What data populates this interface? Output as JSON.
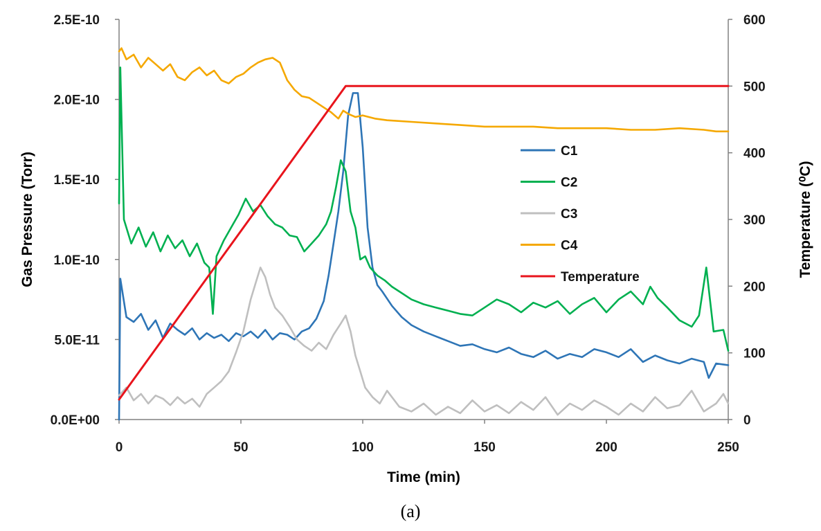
{
  "chart_data": {
    "type": "line",
    "caption": "(a)",
    "xlabel": "Time (min)",
    "ylabel_left": "Gas Pressure (Torr)",
    "ylabel_right": "Temperature (⁰C)",
    "xlim": [
      0,
      250
    ],
    "ylim_left": [
      0,
      2.5e-10
    ],
    "ylim_right": [
      0,
      600
    ],
    "x_ticks": [
      "0",
      "50",
      "100",
      "150",
      "200",
      "250"
    ],
    "y_left_ticks": [
      "0.0E+00",
      "5.0E-11",
      "1.0E-10",
      "1.5E-10",
      "2.0E-10",
      "2.5E-10"
    ],
    "y_right_ticks": [
      "0",
      "100",
      "200",
      "300",
      "400",
      "500",
      "600"
    ],
    "grid": false,
    "legend_position": "center-right",
    "series": [
      {
        "name": "C1",
        "axis": "left",
        "color": "#2e75b6",
        "x": [
          0,
          0.5,
          3,
          6,
          9,
          12,
          15,
          18,
          21,
          24,
          27,
          30,
          33,
          36,
          39,
          42,
          45,
          48,
          51,
          54,
          57,
          60,
          63,
          66,
          69,
          72,
          75,
          78,
          81,
          84,
          86,
          88,
          90,
          92,
          94,
          96,
          98,
          100,
          102,
          104,
          106,
          108,
          112,
          116,
          120,
          125,
          130,
          135,
          140,
          145,
          150,
          155,
          160,
          165,
          170,
          175,
          180,
          185,
          190,
          195,
          200,
          205,
          210,
          215,
          220,
          225,
          230,
          235,
          240,
          242,
          245,
          250
        ],
        "values": [
          0,
          8.8e-11,
          6.4e-11,
          6.1e-11,
          6.6e-11,
          5.6e-11,
          6.2e-11,
          5.1e-11,
          6e-11,
          5.6e-11,
          5.3e-11,
          5.7e-11,
          5e-11,
          5.4e-11,
          5.1e-11,
          5.3e-11,
          4.9e-11,
          5.4e-11,
          5.2e-11,
          5.5e-11,
          5.1e-11,
          5.6e-11,
          5e-11,
          5.4e-11,
          5.3e-11,
          5e-11,
          5.5e-11,
          5.7e-11,
          6.3e-11,
          7.4e-11,
          9e-11,
          1.1e-10,
          1.3e-10,
          1.55e-10,
          1.9e-10,
          2.04e-10,
          2.04e-10,
          1.7e-10,
          1.2e-10,
          9.5e-11,
          8.4e-11,
          8e-11,
          7.1e-11,
          6.4e-11,
          5.9e-11,
          5.5e-11,
          5.2e-11,
          4.9e-11,
          4.6e-11,
          4.7e-11,
          4.4e-11,
          4.2e-11,
          4.5e-11,
          4.1e-11,
          3.9e-11,
          4.3e-11,
          3.8e-11,
          4.1e-11,
          3.9e-11,
          4.4e-11,
          4.2e-11,
          3.9e-11,
          4.4e-11,
          3.6e-11,
          4e-11,
          3.7e-11,
          3.5e-11,
          3.8e-11,
          3.6e-11,
          2.6e-11,
          3.5e-11,
          3.4e-11
        ]
      },
      {
        "name": "C2",
        "axis": "left",
        "color": "#00b050",
        "x": [
          0,
          0.5,
          2,
          5,
          8,
          11,
          14,
          17,
          20,
          23,
          26,
          29,
          32,
          35,
          37,
          38.5,
          40,
          43,
          46,
          49,
          52,
          55,
          58,
          61,
          64,
          67,
          70,
          73,
          76,
          79,
          82,
          85,
          87,
          89,
          91,
          93,
          95,
          97,
          99,
          101,
          103,
          106,
          109,
          112,
          115,
          120,
          125,
          130,
          135,
          140,
          145,
          150,
          155,
          160,
          165,
          170,
          175,
          180,
          185,
          190,
          195,
          200,
          205,
          210,
          215,
          218,
          221,
          225,
          230,
          235,
          238,
          241,
          244,
          248,
          250
        ],
        "values": [
          1.35e-10,
          2.2e-10,
          1.25e-10,
          1.1e-10,
          1.2e-10,
          1.08e-10,
          1.17e-10,
          1.05e-10,
          1.15e-10,
          1.07e-10,
          1.12e-10,
          1.02e-10,
          1.1e-10,
          9.8e-11,
          9.5e-11,
          6.6e-11,
          1.02e-10,
          1.12e-10,
          1.2e-10,
          1.28e-10,
          1.38e-10,
          1.3e-10,
          1.34e-10,
          1.27e-10,
          1.22e-10,
          1.2e-10,
          1.15e-10,
          1.14e-10,
          1.05e-10,
          1.1e-10,
          1.15e-10,
          1.22e-10,
          1.3e-10,
          1.45e-10,
          1.62e-10,
          1.55e-10,
          1.3e-10,
          1.2e-10,
          1e-10,
          1.02e-10,
          9.5e-11,
          9e-11,
          8.7e-11,
          8.3e-11,
          8e-11,
          7.5e-11,
          7.2e-11,
          7e-11,
          6.8e-11,
          6.6e-11,
          6.5e-11,
          7e-11,
          7.5e-11,
          7.2e-11,
          6.7e-11,
          7.3e-11,
          7e-11,
          7.4e-11,
          6.6e-11,
          7.2e-11,
          7.6e-11,
          6.7e-11,
          7.5e-11,
          8e-11,
          7.2e-11,
          8.3e-11,
          7.6e-11,
          7e-11,
          6.2e-11,
          5.8e-11,
          6.5e-11,
          9.5e-11,
          5.5e-11,
          5.6e-11,
          4.3e-11
        ]
      },
      {
        "name": "C3",
        "axis": "left",
        "color": "#bfbfbf",
        "x": [
          0,
          3,
          6,
          9,
          12,
          15,
          18,
          21,
          24,
          27,
          30,
          33,
          36,
          39,
          42,
          45,
          48,
          51,
          54,
          56,
          58,
          60,
          62,
          64,
          67,
          70,
          73,
          76,
          79,
          82,
          85,
          88,
          91,
          93,
          95,
          97,
          99,
          101,
          104,
          107,
          110,
          115,
          120,
          125,
          130,
          135,
          140,
          145,
          150,
          155,
          160,
          165,
          170,
          175,
          180,
          185,
          190,
          195,
          200,
          205,
          210,
          215,
          220,
          225,
          230,
          235,
          240,
          245,
          248,
          250
        ],
        "values": [
          1.5e-11,
          2e-11,
          1.2e-11,
          1.6e-11,
          1e-11,
          1.5e-11,
          1.3e-11,
          9e-12,
          1.4e-11,
          1e-11,
          1.3e-11,
          8e-12,
          1.6e-11,
          2e-11,
          2.4e-11,
          3e-11,
          4.2e-11,
          5.5e-11,
          7.5e-11,
          8.5e-11,
          9.5e-11,
          8.9e-11,
          7.8e-11,
          7e-11,
          6.5e-11,
          5.8e-11,
          5e-11,
          4.6e-11,
          4.3e-11,
          4.8e-11,
          4.4e-11,
          5.3e-11,
          6e-11,
          6.5e-11,
          5.5e-11,
          4e-11,
          3e-11,
          2e-11,
          1.4e-11,
          1e-11,
          1.8e-11,
          8e-12,
          5e-12,
          1e-11,
          3e-12,
          8e-12,
          4e-12,
          1.2e-11,
          5e-12,
          9e-12,
          4e-12,
          1.1e-11,
          6e-12,
          1.4e-11,
          3e-12,
          1e-11,
          6e-12,
          1.2e-11,
          8e-12,
          3e-12,
          1e-11,
          5e-12,
          1.4e-11,
          7e-12,
          9e-12,
          1.8e-11,
          5e-12,
          1e-11,
          1.6e-11,
          1e-11
        ]
      },
      {
        "name": "C4",
        "axis": "left",
        "color": "#f5a800",
        "x": [
          0,
          1,
          3,
          6,
          9,
          12,
          15,
          18,
          21,
          24,
          27,
          30,
          33,
          36,
          39,
          42,
          45,
          48,
          51,
          54,
          57,
          60,
          63,
          66,
          69,
          72,
          75,
          78,
          81,
          84,
          87,
          90,
          92,
          94,
          97,
          100,
          105,
          110,
          120,
          130,
          140,
          150,
          160,
          170,
          180,
          190,
          200,
          210,
          220,
          230,
          240,
          245,
          250
        ],
        "values": [
          2.3e-10,
          2.32e-10,
          2.25e-10,
          2.28e-10,
          2.2e-10,
          2.26e-10,
          2.22e-10,
          2.18e-10,
          2.22e-10,
          2.14e-10,
          2.12e-10,
          2.17e-10,
          2.2e-10,
          2.15e-10,
          2.18e-10,
          2.12e-10,
          2.1e-10,
          2.14e-10,
          2.16e-10,
          2.2e-10,
          2.23e-10,
          2.25e-10,
          2.26e-10,
          2.23e-10,
          2.12e-10,
          2.06e-10,
          2.02e-10,
          2.01e-10,
          1.98e-10,
          1.95e-10,
          1.92e-10,
          1.88e-10,
          1.93e-10,
          1.91e-10,
          1.89e-10,
          1.9e-10,
          1.88e-10,
          1.87e-10,
          1.86e-10,
          1.85e-10,
          1.84e-10,
          1.83e-10,
          1.83e-10,
          1.83e-10,
          1.82e-10,
          1.82e-10,
          1.82e-10,
          1.81e-10,
          1.81e-10,
          1.82e-10,
          1.81e-10,
          1.8e-10,
          1.8e-10
        ]
      },
      {
        "name": "Temperature",
        "axis": "right",
        "color": "#e8141c",
        "x": [
          0,
          93,
          250
        ],
        "values": [
          30,
          500,
          500
        ]
      }
    ]
  }
}
